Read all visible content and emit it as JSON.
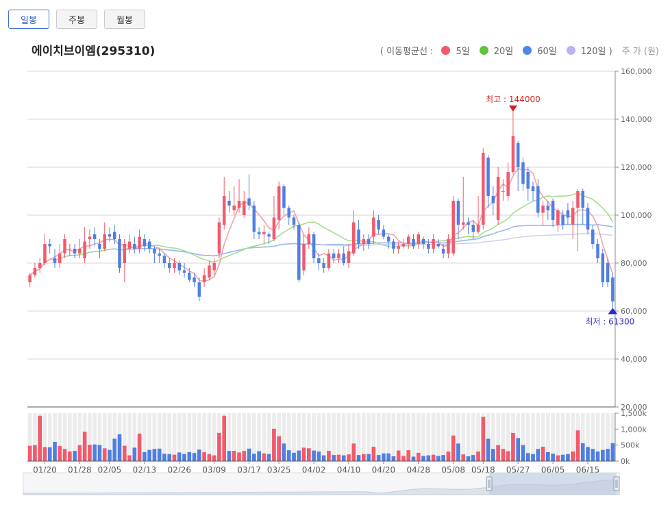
{
  "tabs": [
    {
      "label": "일봉",
      "active": true
    },
    {
      "label": "주봉",
      "active": false
    },
    {
      "label": "월봉",
      "active": false
    }
  ],
  "title": "에이치브이엠(295310)",
  "legend": {
    "prefix": "( 이동평균선  :",
    "items": [
      {
        "label": "5일",
        "color": "#f25a6c"
      },
      {
        "label": "20일",
        "color": "#5fc23e"
      },
      {
        "label": "60일",
        "color": "#4f86e8"
      },
      {
        "label": "120일 )",
        "color": "#b9b4ee"
      }
    ],
    "unit": "주 가 (원)"
  },
  "chart_data": {
    "type": "candlestick",
    "price_ylim": [
      20000,
      160000
    ],
    "price_ticks": [
      "160,000",
      "140,000",
      "120,000",
      "100,000",
      "80,000",
      "60,000",
      "40,000",
      "20,000"
    ],
    "volume_ylim": [
      0,
      1500000
    ],
    "volume_ticks": [
      "1,500k",
      "1,000k",
      "500k",
      "0k"
    ],
    "x_tick_labels": [
      "01/20",
      "01/28",
      "02/05",
      "02/13",
      "02/26",
      "03/09",
      "03/17",
      "03/25",
      "04/02",
      "04/10",
      "04/20",
      "04/28",
      "05/08",
      "05/18",
      "05/27",
      "06/05",
      "06/15"
    ],
    "annotations": {
      "high_label": "최고 : 144000",
      "high_value": 144000,
      "low_label": "최저 : 61300",
      "low_value": 61300
    },
    "colors": {
      "up": "#f25a6c",
      "down": "#4f7fe0",
      "ma5": "#f2a0a8",
      "ma20": "#a6dd8c",
      "ma60": "#9ab9ee",
      "ma120": "#d4d0f2"
    },
    "candles": [
      [
        72000,
        75000,
        76000,
        70000,
        480000
      ],
      [
        75000,
        78000,
        80000,
        74000,
        500000
      ],
      [
        78000,
        80000,
        82000,
        76000,
        1420000
      ],
      [
        80000,
        88000,
        92000,
        79000,
        440000
      ],
      [
        88000,
        87000,
        90000,
        84000,
        430000
      ],
      [
        82000,
        80000,
        86000,
        78000,
        600000
      ],
      [
        80000,
        84000,
        88000,
        78000,
        470000
      ],
      [
        84000,
        90000,
        92000,
        82000,
        380000
      ],
      [
        86000,
        86000,
        88000,
        83000,
        300000
      ],
      [
        86000,
        84000,
        88000,
        82000,
        320000
      ],
      [
        84000,
        86000,
        90000,
        82000,
        500000
      ],
      [
        82000,
        89000,
        95000,
        80000,
        920000
      ],
      [
        90000,
        91000,
        94000,
        86000,
        510000
      ],
      [
        92000,
        90000,
        95000,
        87000,
        520000
      ],
      [
        88000,
        86000,
        90000,
        82000,
        500000
      ],
      [
        86000,
        92000,
        97000,
        85000,
        400000
      ],
      [
        92000,
        91000,
        95000,
        89000,
        350000
      ],
      [
        93000,
        90000,
        96000,
        88000,
        700000
      ],
      [
        90000,
        78000,
        92000,
        76000,
        840000
      ],
      [
        80000,
        88000,
        90000,
        72000,
        480000
      ],
      [
        86000,
        89000,
        92000,
        84000,
        180000
      ],
      [
        88000,
        86000,
        91000,
        84000,
        420000
      ],
      [
        86000,
        91000,
        94000,
        84000,
        860000
      ],
      [
        90000,
        87000,
        92000,
        85000,
        280000
      ],
      [
        89000,
        86000,
        90000,
        84000,
        350000
      ],
      [
        86000,
        84000,
        87000,
        80000,
        380000
      ],
      [
        84000,
        83000,
        86000,
        80000,
        390000
      ],
      [
        83000,
        80000,
        84000,
        78000,
        230000
      ],
      [
        80000,
        78000,
        82000,
        76000,
        220000
      ],
      [
        78000,
        80000,
        82000,
        76000,
        200000
      ],
      [
        80000,
        77000,
        81000,
        75000,
        270000
      ],
      [
        77000,
        76000,
        80000,
        74000,
        220000
      ],
      [
        76000,
        73000,
        78000,
        72000,
        280000
      ],
      [
        74000,
        72000,
        76000,
        70000,
        250000
      ],
      [
        72000,
        66000,
        74000,
        64000,
        360000
      ],
      [
        72000,
        75000,
        78000,
        70000,
        280000
      ],
      [
        74000,
        79000,
        81000,
        73000,
        220000
      ],
      [
        77000,
        80000,
        82000,
        75000,
        180000
      ],
      [
        84000,
        97000,
        99000,
        82000,
        880000
      ],
      [
        96000,
        108000,
        116000,
        94000,
        1420000
      ],
      [
        106000,
        104000,
        110000,
        101000,
        320000
      ],
      [
        102000,
        104000,
        112000,
        100000,
        320000
      ],
      [
        103000,
        106000,
        115000,
        101000,
        270000
      ],
      [
        100000,
        106000,
        110000,
        99000,
        320000
      ],
      [
        107000,
        104000,
        117000,
        102000,
        390000
      ],
      [
        104000,
        93000,
        106000,
        90000,
        230000
      ],
      [
        93000,
        92000,
        95000,
        90000,
        310000
      ],
      [
        92000,
        93000,
        96000,
        88000,
        240000
      ],
      [
        92000,
        91000,
        93000,
        88000,
        220000
      ],
      [
        90000,
        99000,
        108000,
        89000,
        1010000
      ],
      [
        98000,
        112000,
        114000,
        94000,
        780000
      ],
      [
        112000,
        103000,
        113000,
        100000,
        550000
      ],
      [
        103000,
        99000,
        104000,
        96000,
        340000
      ],
      [
        99000,
        96000,
        100000,
        94000,
        260000
      ],
      [
        96000,
        73000,
        97000,
        72000,
        330000
      ],
      [
        77000,
        88000,
        92000,
        75000,
        420000
      ],
      [
        88000,
        92000,
        95000,
        86000,
        400000
      ],
      [
        92000,
        82000,
        93000,
        80000,
        330000
      ],
      [
        82000,
        80000,
        84000,
        77000,
        300000
      ],
      [
        80000,
        78000,
        82000,
        76000,
        180000
      ],
      [
        78000,
        84000,
        86000,
        77000,
        320000
      ],
      [
        84000,
        82000,
        86000,
        80000,
        190000
      ],
      [
        82000,
        84000,
        86000,
        80000,
        200000
      ],
      [
        84000,
        80000,
        87000,
        79000,
        180000
      ],
      [
        80000,
        85000,
        88000,
        78000,
        210000
      ],
      [
        84000,
        97000,
        102000,
        83000,
        550000
      ],
      [
        94000,
        88000,
        98000,
        86000,
        190000
      ],
      [
        88000,
        90000,
        92000,
        85000,
        220000
      ],
      [
        90000,
        88000,
        92000,
        86000,
        220000
      ],
      [
        91000,
        99000,
        102000,
        88000,
        450000
      ],
      [
        98000,
        94000,
        100000,
        92000,
        190000
      ],
      [
        94000,
        91000,
        96000,
        90000,
        240000
      ],
      [
        91000,
        89000,
        92000,
        86000,
        240000
      ],
      [
        89000,
        86000,
        90000,
        84000,
        150000
      ],
      [
        86000,
        87000,
        89000,
        84000,
        330000
      ],
      [
        87000,
        88000,
        90000,
        86000,
        160000
      ],
      [
        88000,
        91000,
        92000,
        86000,
        340000
      ],
      [
        90000,
        87000,
        92000,
        86000,
        140000
      ],
      [
        88000,
        92000,
        93000,
        86000,
        260000
      ],
      [
        90000,
        88000,
        91000,
        86000,
        160000
      ],
      [
        88000,
        86000,
        90000,
        84000,
        180000
      ],
      [
        86000,
        90000,
        92000,
        84000,
        200000
      ],
      [
        88000,
        87000,
        90000,
        86000,
        160000
      ],
      [
        86000,
        84000,
        88000,
        82000,
        190000
      ],
      [
        84000,
        90000,
        92000,
        82000,
        300000
      ],
      [
        84000,
        106000,
        108000,
        83000,
        800000
      ],
      [
        106000,
        96000,
        107000,
        90000,
        550000
      ],
      [
        96000,
        97000,
        116000,
        94000,
        210000
      ],
      [
        97000,
        96000,
        99000,
        92000,
        150000
      ],
      [
        96000,
        93000,
        98000,
        90000,
        190000
      ],
      [
        93000,
        96000,
        108000,
        92000,
        300000
      ],
      [
        96000,
        126000,
        128000,
        94000,
        1380000
      ],
      [
        124000,
        108000,
        125000,
        103000,
        700000
      ],
      [
        108000,
        105000,
        112000,
        100000,
        380000
      ],
      [
        98000,
        116000,
        120000,
        96000,
        500000
      ],
      [
        110000,
        110000,
        115000,
        106000,
        380000
      ],
      [
        108000,
        118000,
        122000,
        106000,
        310000
      ],
      [
        118000,
        133000,
        144000,
        117000,
        880000
      ],
      [
        130000,
        120000,
        131000,
        110000,
        720000
      ],
      [
        122000,
        113000,
        124000,
        110000,
        500000
      ],
      [
        118000,
        111000,
        120000,
        106000,
        250000
      ],
      [
        112000,
        110000,
        114000,
        106000,
        220000
      ],
      [
        112000,
        101000,
        115000,
        99000,
        380000
      ],
      [
        101000,
        104000,
        106000,
        96000,
        450000
      ],
      [
        104000,
        102000,
        106000,
        98000,
        280000
      ],
      [
        106000,
        98000,
        107000,
        95000,
        230000
      ],
      [
        96000,
        102000,
        103000,
        93000,
        180000
      ],
      [
        100000,
        96000,
        102000,
        94000,
        200000
      ],
      [
        102000,
        99000,
        105000,
        96000,
        220000
      ],
      [
        96000,
        103000,
        106000,
        90000,
        300000
      ],
      [
        103000,
        110000,
        111000,
        85000,
        960000
      ],
      [
        110000,
        103000,
        111000,
        96000,
        560000
      ],
      [
        103000,
        94000,
        105000,
        92000,
        440000
      ],
      [
        94000,
        88000,
        96000,
        86000,
        380000
      ],
      [
        88000,
        82000,
        90000,
        80000,
        300000
      ],
      [
        84000,
        72000,
        86000,
        70000,
        350000
      ],
      [
        80000,
        72000,
        82000,
        70000,
        380000
      ],
      [
        74000,
        64000,
        76000,
        61300,
        560000
      ]
    ]
  }
}
